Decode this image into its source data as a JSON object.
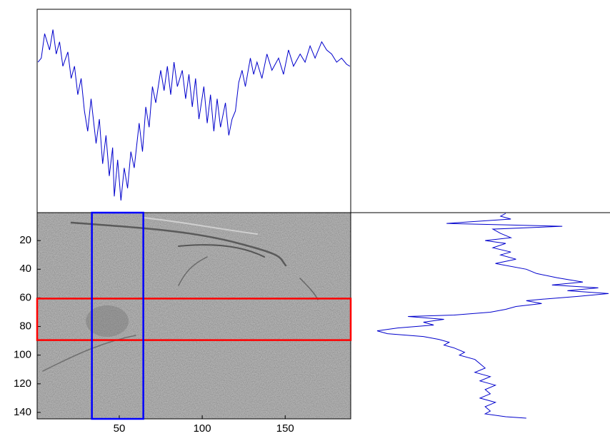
{
  "chart_data": [
    {
      "type": "image",
      "xlim": [
        0.5,
        189.5
      ],
      "ylim": [
        0.5,
        144.5
      ],
      "xticks": [
        50,
        100,
        150
      ],
      "yticks": [
        20,
        40,
        60,
        80,
        100,
        120,
        140
      ],
      "row_band": [
        60.5,
        89.5
      ],
      "row_band_color": "#ff0000",
      "column_band": [
        33.5,
        64.5
      ],
      "column_band_color": "#0000ff"
    },
    {
      "type": "line",
      "orientation": "horizontal",
      "color": "#0000cc",
      "xlim": [
        0.5,
        189.5
      ],
      "ylim": [
        0,
        100
      ],
      "x": [
        1,
        3,
        5,
        8,
        10,
        12,
        14,
        16,
        19,
        21,
        23,
        25,
        27,
        29,
        31,
        33,
        36,
        38,
        40,
        42,
        44,
        46,
        47,
        49,
        51,
        53,
        55,
        57,
        59,
        62,
        64,
        66,
        68,
        70,
        72,
        75,
        77,
        79,
        81,
        83,
        85,
        88,
        90,
        92,
        94,
        96,
        98,
        101,
        103,
        105,
        107,
        109,
        111,
        114,
        116,
        118,
        120,
        122,
        124,
        126,
        129,
        131,
        133,
        136,
        139,
        142,
        146,
        149,
        152,
        155,
        159,
        162,
        165,
        168,
        172,
        175,
        178,
        181,
        184,
        187,
        189
      ],
      "values": [
        74,
        76,
        88,
        80,
        90,
        78,
        84,
        72,
        79,
        66,
        72,
        58,
        66,
        50,
        40,
        56,
        34,
        46,
        24,
        38,
        18,
        32,
        8,
        26,
        6,
        22,
        12,
        30,
        22,
        44,
        30,
        52,
        42,
        62,
        54,
        70,
        60,
        72,
        58,
        74,
        62,
        70,
        56,
        68,
        52,
        66,
        46,
        62,
        44,
        58,
        40,
        56,
        42,
        54,
        38,
        46,
        50,
        64,
        70,
        62,
        76,
        68,
        74,
        66,
        78,
        70,
        76,
        68,
        80,
        72,
        78,
        74,
        82,
        76,
        84,
        80,
        78,
        74,
        76,
        73,
        72
      ]
    },
    {
      "type": "line",
      "orientation": "vertical",
      "color": "#0000cc",
      "xlim": [
        0,
        100
      ],
      "ylim": [
        0.5,
        144.5
      ],
      "y": [
        1,
        3,
        5,
        8,
        9,
        10,
        12,
        15,
        18,
        20,
        22,
        25,
        28,
        30,
        33,
        36,
        40,
        43,
        46,
        49,
        51,
        53,
        55,
        57,
        59,
        61,
        62,
        64,
        66,
        68,
        70,
        72,
        73,
        75,
        77,
        79,
        81,
        83,
        85,
        87,
        89,
        91,
        93,
        95,
        98,
        100,
        103,
        106,
        109,
        112,
        115,
        118,
        121,
        124,
        127,
        130,
        133,
        136,
        139,
        141,
        143,
        144
      ],
      "values": [
        60,
        58,
        62,
        37,
        60,
        82,
        55,
        58,
        62,
        52,
        60,
        55,
        62,
        58,
        64,
        56,
        68,
        72,
        80,
        90,
        78,
        96,
        84,
        100,
        88,
        74,
        68,
        74,
        64,
        60,
        54,
        40,
        22,
        36,
        28,
        32,
        18,
        10,
        14,
        28,
        34,
        38,
        36,
        40,
        44,
        42,
        48,
        50,
        52,
        48,
        54,
        50,
        56,
        52,
        54,
        50,
        56,
        52,
        54,
        52,
        60,
        68
      ]
    }
  ]
}
